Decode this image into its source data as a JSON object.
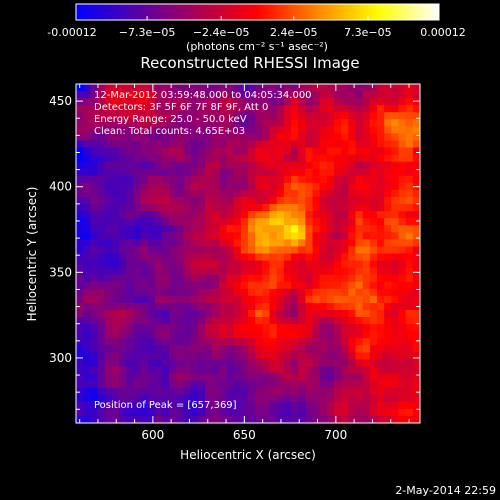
{
  "colorbar": {
    "tick_labels": [
      "-0.00012",
      "−7.3e−05",
      "−2.4e−05",
      "2.4e−05",
      "7.3e−05",
      "0.00012"
    ],
    "tick_values": [
      -0.00012,
      -7.3e-05,
      -2.4e-05,
      2.4e-05,
      7.3e-05,
      0.00012
    ],
    "range": [
      -0.00012,
      0.00012
    ],
    "units_label": "(photons cm⁻² s⁻¹ asec⁻²)",
    "colors": [
      "#0000ff",
      "#5500aa",
      "#aa0055",
      "#ff0000",
      "#ff8800",
      "#ffff00",
      "#ffffff"
    ]
  },
  "chart_data": {
    "type": "heatmap",
    "title": "Reconstructed RHESSI Image",
    "xlabel": "Heliocentric X (arcsec)",
    "ylabel": "Heliocentric Y (arcsec)",
    "xlim": [
      558,
      746
    ],
    "ylim": [
      262,
      460
    ],
    "xticks": [
      600,
      650,
      700
    ],
    "yticks": [
      300,
      350,
      400,
      450
    ],
    "annotations": {
      "time_range": "12-Mar-2012 03:59:48.000 to 04:05:34.000",
      "detectors": "Detectors: 3F 5F 6F 7F 8F 9F, Att 0",
      "energy_range": "Energy Range: 25.0 - 50.0 keV",
      "clean": "Clean:  Total counts: 4.65E+03",
      "peak": "Position of Peak = [657,369]"
    },
    "peak_position": [
      657,
      369
    ],
    "grid": false
  },
  "footer": {
    "date": "2-May-2014 22:59"
  }
}
